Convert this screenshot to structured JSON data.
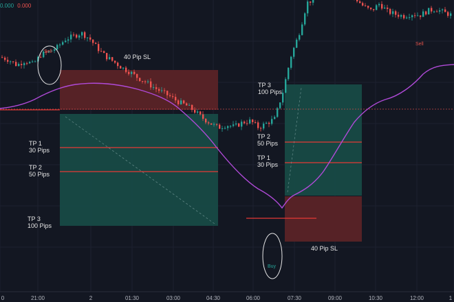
{
  "colors": {
    "background": "#131722",
    "up": "#26a69a",
    "down": "#ef5350",
    "ma": "#b04ad8",
    "stop_zone": "#5a2327",
    "target_zone": "#174a46",
    "tp_line": "#e53935",
    "text": "#e6e6e6",
    "axis_text": "#b2b5be"
  },
  "ohlc_readout": {
    "left": "0.000",
    "right": "0.000"
  },
  "annotations": {
    "sell_trade": {
      "sl_label": "40 Pip SL",
      "tp1": "TP 1\n30 Pips",
      "tp2": "TP 2\n50 Pips",
      "tp3": "TP 3\n100 Pips",
      "signal": "Sell"
    },
    "buy_trade": {
      "sl_label": "40 Pip SL",
      "tp1": "TP 1\n30 Pips",
      "tp2": "TP 2\n50 Pips",
      "tp3": "TP 3\n100 Pips",
      "signal": "Buy"
    },
    "sell_signal_2": "Sell"
  },
  "chart_data": {
    "type": "candlestick",
    "x_ticks": [
      "0",
      "21:00",
      "2",
      "01:30",
      "03:00",
      "04:30",
      "06:00",
      "07:30",
      "09:00",
      "10:30",
      "12:00",
      "1"
    ],
    "series": [
      {
        "name": "",
        "type": "candlestick",
        "close_path": [
          {
            "t": 0,
            "c": 118
          },
          {
            "t": 1,
            "c": 112
          },
          {
            "t": 2,
            "c": 100
          },
          {
            "t": 3,
            "c": 110
          },
          {
            "t": 4,
            "c": 102
          },
          {
            "t": 5,
            "c": 124
          },
          {
            "t": 6,
            "c": 130
          },
          {
            "t": 7,
            "c": 140
          },
          {
            "t": 8,
            "c": 158
          },
          {
            "t": 9,
            "c": 165
          },
          {
            "t": 10,
            "c": 172
          },
          {
            "t": 11,
            "c": 160
          },
          {
            "t": 12,
            "c": 138
          },
          {
            "t": 13,
            "c": 120
          },
          {
            "t": 14,
            "c": 108
          },
          {
            "t": 15,
            "c": 95
          },
          {
            "t": 16,
            "c": 85
          },
          {
            "t": 17,
            "c": 72
          },
          {
            "t": 18,
            "c": 62
          },
          {
            "t": 19,
            "c": 50
          },
          {
            "t": 20,
            "c": 40
          },
          {
            "t": 21,
            "c": 30
          },
          {
            "t": 22,
            "c": 18
          },
          {
            "t": 23,
            "c": 10
          },
          {
            "t": 24,
            "c": -2
          },
          {
            "t": 25,
            "c": -18
          },
          {
            "t": 26,
            "c": -30
          },
          {
            "t": 27,
            "c": -40
          },
          {
            "t": 28,
            "c": -34
          },
          {
            "t": 29,
            "c": -38
          },
          {
            "t": 30,
            "c": -28
          },
          {
            "t": 31,
            "c": -25
          },
          {
            "t": 32,
            "c": -40
          },
          {
            "t": 33,
            "c": -30
          },
          {
            "t": 34,
            "c": -20
          },
          {
            "t": 35,
            "c": 40
          },
          {
            "t": 36,
            "c": 120
          },
          {
            "t": 37,
            "c": 170
          },
          {
            "t": 38,
            "c": 240
          },
          {
            "t": 39,
            "c": 250
          },
          {
            "t": 40,
            "c": 258
          },
          {
            "t": 41,
            "c": 285
          },
          {
            "t": 42,
            "c": 276
          },
          {
            "t": 43,
            "c": 268
          },
          {
            "t": 44,
            "c": 250
          },
          {
            "t": 45,
            "c": 232
          },
          {
            "t": 46,
            "c": 222
          },
          {
            "t": 47,
            "c": 238
          },
          {
            "t": 48,
            "c": 220
          },
          {
            "t": 49,
            "c": 214
          },
          {
            "t": 50,
            "c": 210
          },
          {
            "t": 51,
            "c": 215
          },
          {
            "t": 52,
            "c": 212
          },
          {
            "t": 53,
            "c": 222
          },
          {
            "t": 54,
            "c": 226
          },
          {
            "t": 55,
            "c": 218
          },
          {
            "t": 56,
            "c": 212
          }
        ]
      }
    ]
  }
}
